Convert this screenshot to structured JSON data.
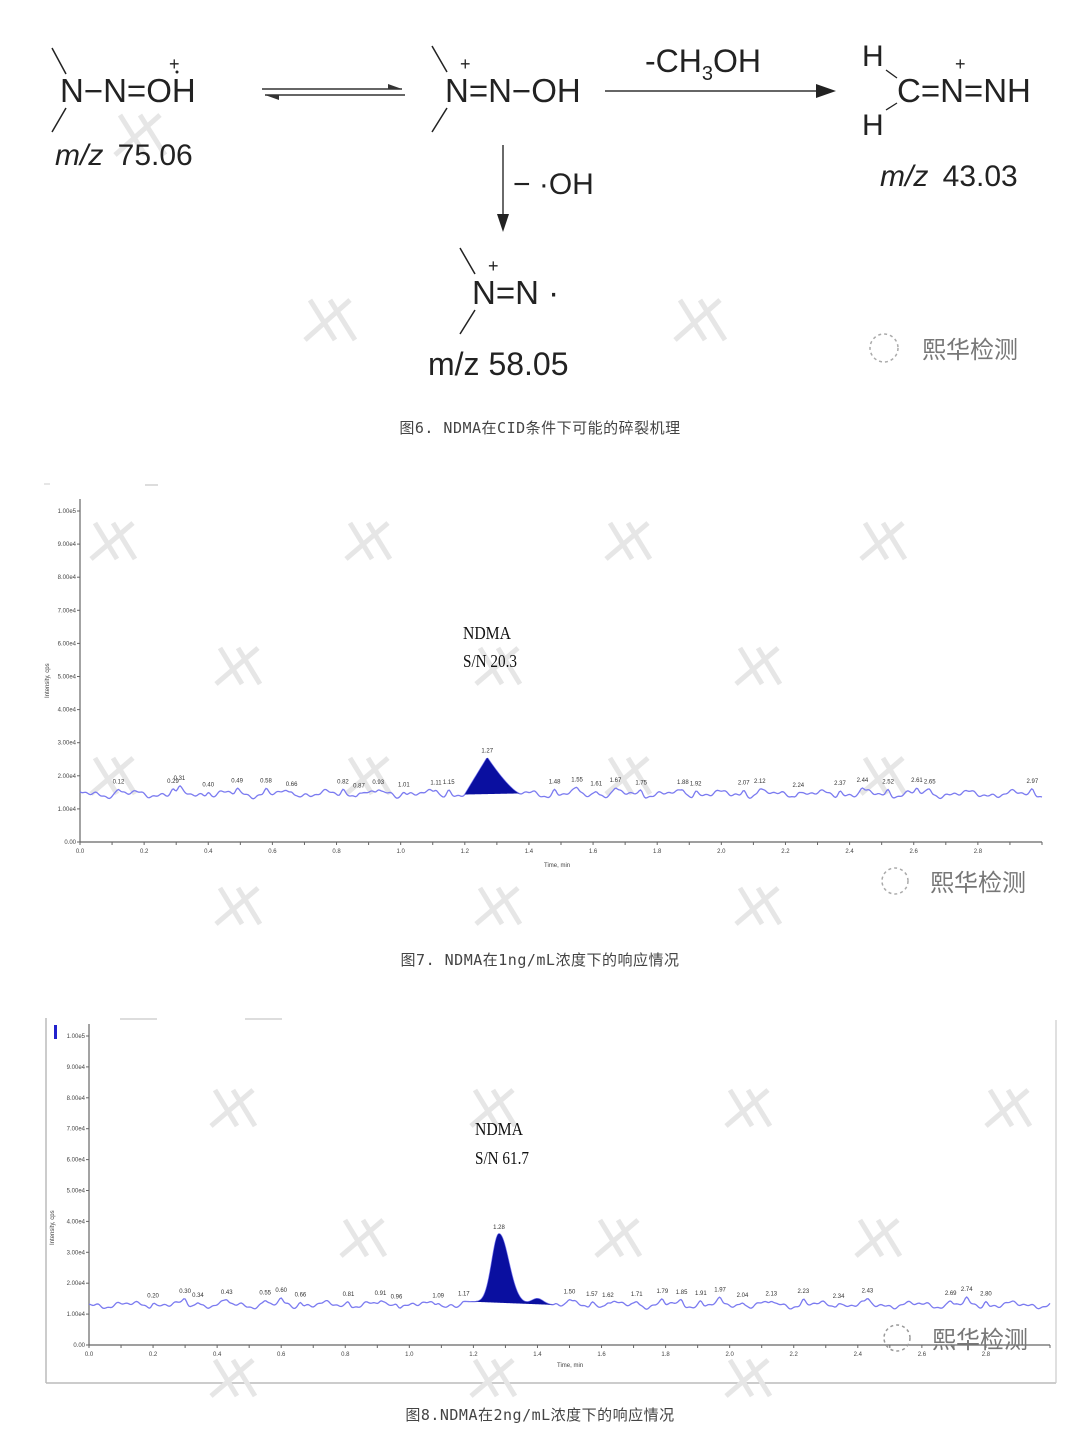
{
  "figure6": {
    "caption": "图6. NDMA在CID条件下可能的碎裂机理",
    "molecule_1": {
      "formula": "N−N=OH",
      "charge": "+",
      "mz_label": "m/z",
      "mz_value": "75.06"
    },
    "molecule_2": {
      "formula": "N=N−OH",
      "charge": "+"
    },
    "molecule_3": {
      "h_top": "H",
      "h_bottom": "H",
      "formula": "C=N=NH",
      "charge": "+",
      "mz_label": "m/z",
      "mz_value": "43.03"
    },
    "molecule_4": {
      "formula": "N=N ·",
      "charge": "+",
      "mz_text": "m/z 58.05"
    },
    "arrow_right_label": {
      "prefix": "-CH",
      "subscript": "3",
      "suffix": "OH"
    },
    "arrow_down_label": "− ·OH",
    "logo_text": "熙华检测"
  },
  "figure7": {
    "caption": "图7. NDMA在1ng/mL浓度下的响应情况",
    "logo_text": "熙华检测"
  },
  "figure8": {
    "caption": "图8.NDMA在2ng/mL浓度下的响应情况",
    "logo_text": "熙华检测"
  },
  "chart_data": [
    {
      "type": "line",
      "title": "",
      "xlabel": "Time, min",
      "ylabel": "Intensity, cps",
      "xlim": [
        0,
        3.0
      ],
      "ylim": [
        0,
        100000
      ],
      "x_ticks": [
        "0.0",
        "0.2",
        "0.4",
        "0.6",
        "0.8",
        "1.0",
        "1.2",
        "1.4",
        "1.6",
        "1.8",
        "2.0",
        "2.2",
        "2.4",
        "2.6",
        "2.8"
      ],
      "y_ticks": [
        "0.00",
        "1.00e4",
        "2.00e4",
        "3.00e4",
        "4.00e4",
        "5.00e4",
        "6.00e4",
        "7.00e4",
        "8.00e4",
        "9.00e4",
        "1.00e5"
      ],
      "grid": false,
      "series_color": "#7b7bf0",
      "peak_fill_color": "#0a0fa0",
      "baseline_intensity": 14500,
      "main_peak": {
        "rt": 1.27,
        "label": "1.27",
        "apex_intensity": 25500,
        "start": 1.2,
        "end": 1.37
      },
      "annotation": [
        "NDMA",
        "S/N 20.3"
      ],
      "peak_labels": [
        "0.12",
        "0.29",
        "0.31",
        "0.40",
        "0.49",
        "0.58",
        "0.66",
        "0.82",
        "0.87",
        "0.93",
        "1.01",
        "1.11",
        "1.15",
        "1.48",
        "1.55",
        "1.61",
        "1.67",
        "1.75",
        "1.88",
        "1.92",
        "2.07",
        "2.12",
        "2.24",
        "2.37",
        "2.44",
        "2.52",
        "2.61",
        "2.65",
        "2.97"
      ]
    },
    {
      "type": "line",
      "title": "",
      "xlabel": "Time, min",
      "ylabel": "Intensity, cps",
      "xlim": [
        0,
        3.0
      ],
      "ylim": [
        0,
        100000
      ],
      "x_ticks": [
        "0.0",
        "0.2",
        "0.4",
        "0.6",
        "0.8",
        "1.0",
        "1.2",
        "1.4",
        "1.6",
        "1.8",
        "2.0",
        "2.2",
        "2.4",
        "2.6",
        "2.8"
      ],
      "y_ticks": [
        "0.00",
        "1.00e4",
        "2.00e4",
        "3.00e4",
        "4.00e4",
        "5.00e4",
        "6.00e4",
        "7.00e4",
        "8.00e4",
        "9.00e4",
        "1.00e5"
      ],
      "grid": false,
      "series_color": "#7b7bf0",
      "peak_fill_color": "#0a0fa0",
      "baseline_intensity": 13000,
      "main_peak": {
        "rt": 1.28,
        "label": "1.28",
        "apex_intensity": 36000,
        "start": 1.17,
        "end": 1.45
      },
      "annotation": [
        "NDMA",
        "S/N 61.7"
      ],
      "peak_labels": [
        "0.20",
        "0.30",
        "0.34",
        "0.43",
        "0.55",
        "0.60",
        "0.66",
        "0.81",
        "0.91",
        "0.96",
        "1.09",
        "1.17",
        "1.50",
        "1.57",
        "1.62",
        "1.71",
        "1.79",
        "1.85",
        "1.91",
        "1.97",
        "2.04",
        "2.13",
        "2.23",
        "2.34",
        "2.43",
        "2.69",
        "2.74",
        "2.80"
      ]
    }
  ]
}
